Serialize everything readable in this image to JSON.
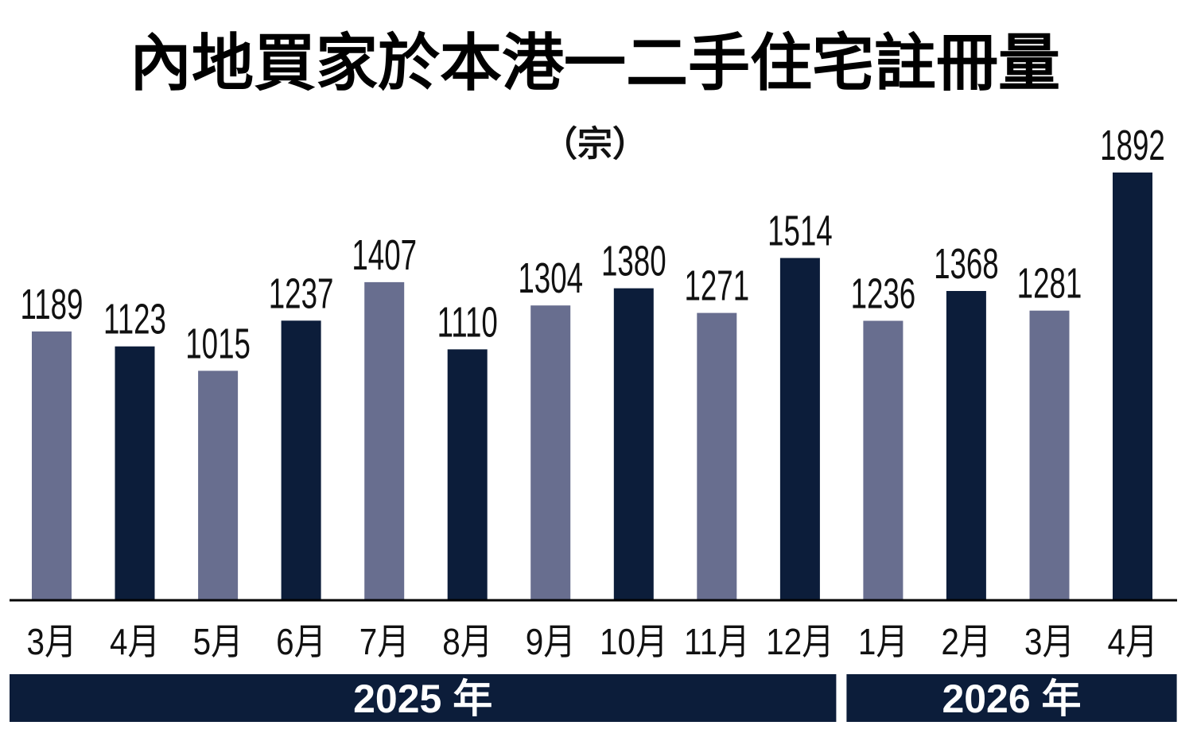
{
  "chart_data": {
    "type": "bar",
    "title": "內地買家於本港一二手住宅註冊量",
    "unit": "（宗）",
    "categories": [
      "3月",
      "4月",
      "5月",
      "6月",
      "7月",
      "8月",
      "9月",
      "10月",
      "11月",
      "12月",
      "1月",
      "2月",
      "3月",
      "4月"
    ],
    "values": [
      1189,
      1123,
      1015,
      1237,
      1407,
      1110,
      1304,
      1380,
      1271,
      1514,
      1236,
      1368,
      1281,
      1892
    ],
    "category_groups": [
      {
        "label": "2025 年",
        "size": 10
      },
      {
        "label": "2026 年",
        "size": 4
      }
    ],
    "bar_colors": [
      "#686e8f",
      "#0c1d3a",
      "#686e8f",
      "#0c1d3a",
      "#686e8f",
      "#0c1d3a",
      "#686e8f",
      "#0c1d3a",
      "#686e8f",
      "#0c1d3a",
      "#686e8f",
      "#0c1d3a",
      "#686e8f",
      "#0c1d3a"
    ],
    "group_band_color": "#0c1d3a",
    "data_labels": true,
    "grid": false,
    "legend": "none"
  }
}
